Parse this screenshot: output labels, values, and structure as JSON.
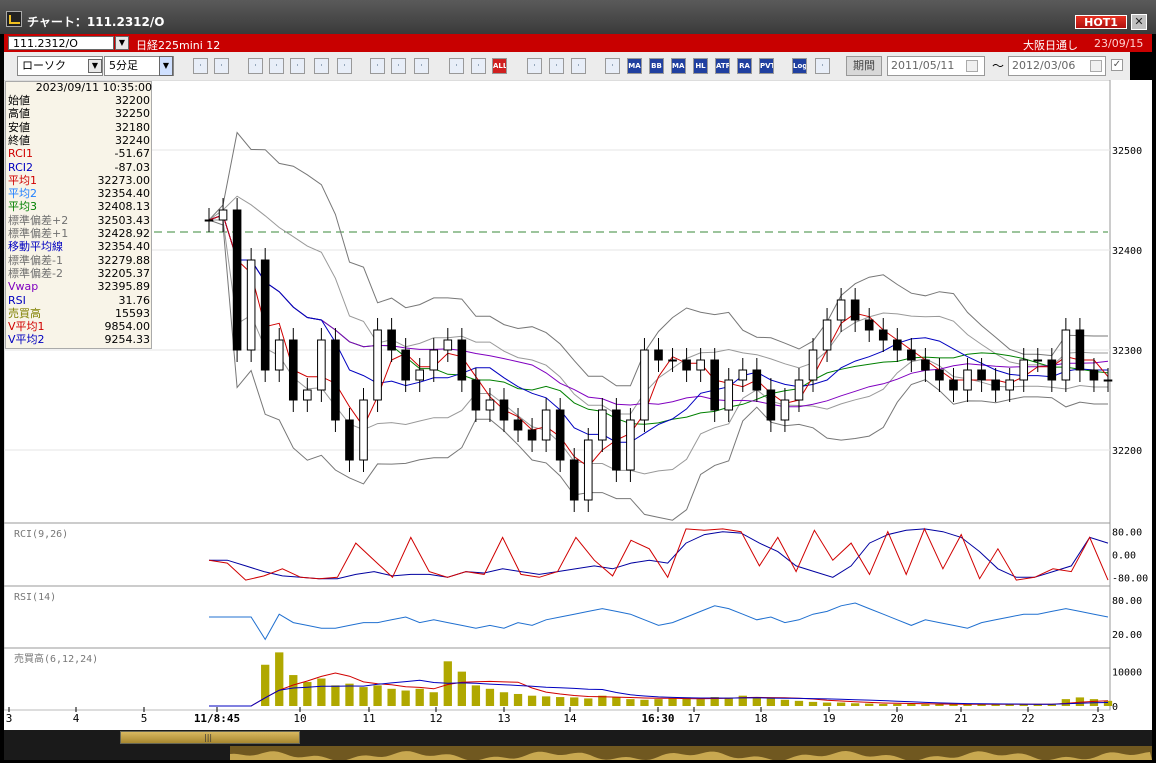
{
  "window": {
    "title": "チャート：111.2312/O",
    "hot_label": "HOT1",
    "close_glyph": "✕"
  },
  "symbolbar": {
    "symbol_code": "111.2312/O",
    "symbol_name": "日経225mini 12",
    "session": "大阪日通し",
    "date": "23/09/15"
  },
  "toolbar": {
    "chart_type": "ローソク",
    "interval": "5分足",
    "period_label": "期間",
    "date_from": "2011/05/11",
    "range_sep": "〜",
    "date_to": "2012/03/06",
    "buttons": [
      "zoom-icon",
      "crosshair-icon",
      "arrow-down-icon",
      "chart-search-icon",
      "list-icon",
      "scale-icon",
      "blank-icon",
      "pen-icon",
      "pointer-icon",
      "undo-icon",
      "bar-one-icon",
      "bar-two-icon",
      "all-icon",
      "gear-icon",
      "wrench-icon",
      "color-icon",
      "bb-icon",
      "ma-icon",
      "bb2-icon",
      "mae-icon",
      "hl-icon",
      "atr-icon",
      "ra-icon",
      "pvt-icon",
      "log-icon",
      "export-icon"
    ],
    "button_labels": {
      "all-icon": "ALL",
      "ma-icon": "MA",
      "bb2-icon": "BB",
      "mae-icon": "MAE",
      "hl-icon": "HL",
      "atr-icon": "ATR",
      "ra-icon": "RA",
      "pvt-icon": "PVT",
      "log-icon": "Log"
    }
  },
  "info_panel": {
    "timestamp": "2023/09/11  10:35:00",
    "rows": [
      {
        "label": "始値",
        "value": "32200",
        "color": "#000000"
      },
      {
        "label": "高値",
        "value": "32250",
        "color": "#000000"
      },
      {
        "label": "安値",
        "value": "32180",
        "color": "#000000"
      },
      {
        "label": "終値",
        "value": "32240",
        "color": "#000000"
      },
      {
        "label": "RCI1",
        "value": "-51.67",
        "color": "#d00000"
      },
      {
        "label": "RCI2",
        "value": "-87.03",
        "color": "#0000c0"
      },
      {
        "label": "平均1",
        "value": "32273.00",
        "color": "#d00000"
      },
      {
        "label": "平均2",
        "value": "32354.40",
        "color": "#2080ff"
      },
      {
        "label": "平均3",
        "value": "32408.13",
        "color": "#008000"
      },
      {
        "label": "標準偏差+2",
        "value": "32503.43",
        "color": "#707070"
      },
      {
        "label": "標準偏差+1",
        "value": "32428.92",
        "color": "#707070"
      },
      {
        "label": "移動平均線",
        "value": "32354.40",
        "color": "#0000c0"
      },
      {
        "label": "標準偏差-1",
        "value": "32279.88",
        "color": "#707070"
      },
      {
        "label": "標準偏差-2",
        "value": "32205.37",
        "color": "#707070"
      },
      {
        "label": "Vwap",
        "value": "32395.89",
        "color": "#8000c0"
      },
      {
        "label": "RSI",
        "value": "31.76",
        "color": "#0000c0"
      },
      {
        "label": "売買高",
        "value": "15593",
        "color": "#808000"
      },
      {
        "label": "V平均1",
        "value": "9854.00",
        "color": "#d00000"
      },
      {
        "label": "V平均2",
        "value": "9254.33",
        "color": "#0000c0"
      }
    ]
  },
  "chart_data": {
    "type": "line",
    "price_axis": {
      "ticks": [
        32500,
        32400,
        32300,
        32200
      ],
      "ylim": [
        32130,
        32560
      ]
    },
    "x_ticks": [
      "3",
      "4",
      "5",
      "11/8:45",
      "10",
      "11",
      "12",
      "13",
      "14",
      "16:30",
      "17",
      "18",
      "19",
      "20",
      "21",
      "22",
      "23"
    ],
    "price_series": [
      32430,
      32440,
      32300,
      32390,
      32280,
      32310,
      32250,
      32260,
      32310,
      32230,
      32190,
      32250,
      32320,
      32300,
      32270,
      32280,
      32300,
      32310,
      32270,
      32240,
      32250,
      32230,
      32220,
      32210,
      32240,
      32190,
      32150,
      32210,
      32240,
      32180,
      32230,
      32300,
      32290,
      32290,
      32280,
      32290,
      32240,
      32270,
      32280,
      32260,
      32230,
      32250,
      32270,
      32300,
      32330,
      32350,
      32330,
      32320,
      32310,
      32300,
      32290,
      32280,
      32270,
      32260,
      32280,
      32270,
      32260,
      32270,
      32290,
      32290,
      32270,
      32320,
      32280,
      32270,
      32270
    ],
    "rci": {
      "label": "RCI(9,26)",
      "ticks": [
        "80.00",
        "0.00",
        "-80.00"
      ],
      "ylim": [
        -100,
        100
      ],
      "rci1": [
        -20,
        -30,
        -90,
        -75,
        -50,
        -80,
        -85,
        -80,
        40,
        -20,
        -80,
        60,
        -60,
        -80,
        -60,
        -70,
        60,
        -70,
        -80,
        -60,
        60,
        -20,
        -75,
        50,
        20,
        -80,
        90,
        85,
        90,
        80,
        -40,
        60,
        -60,
        85,
        -20,
        40,
        -70,
        80,
        -70,
        90,
        -50,
        70,
        -85,
        20,
        -90,
        -80,
        -50,
        -60,
        60,
        -90
      ],
      "rci2": [
        -20,
        -20,
        -40,
        -60,
        -75,
        -80,
        -85,
        -85,
        -70,
        -60,
        -75,
        -70,
        -70,
        -80,
        -60,
        -65,
        -50,
        -60,
        -70,
        -60,
        -50,
        -40,
        -50,
        -30,
        -20,
        -30,
        40,
        70,
        80,
        75,
        40,
        10,
        -40,
        -60,
        -80,
        -40,
        40,
        70,
        85,
        90,
        80,
        60,
        10,
        -50,
        -80,
        -80,
        -60,
        -40,
        60,
        40
      ]
    },
    "rsi": {
      "label": "RSI(14)",
      "ticks": [
        "80.00",
        "20.00"
      ],
      "ylim": [
        0,
        100
      ],
      "values": [
        50,
        50,
        50,
        50,
        10,
        55,
        40,
        35,
        30,
        30,
        35,
        40,
        40,
        45,
        50,
        40,
        45,
        40,
        35,
        30,
        35,
        30,
        40,
        35,
        45,
        50,
        55,
        60,
        65,
        60,
        55,
        45,
        35,
        40,
        50,
        60,
        70,
        65,
        55,
        45,
        50,
        40,
        45,
        55,
        60,
        70,
        75,
        65,
        55,
        45,
        35,
        45,
        40,
        35,
        30,
        40,
        45,
        50,
        55,
        55,
        60,
        65,
        60,
        55,
        50
      ]
    },
    "volume": {
      "label": "売買高(6,12,24)",
      "ticks": [
        "10000",
        "0"
      ],
      "ylim": [
        0,
        16000
      ],
      "values": [
        0,
        0,
        0,
        0,
        12000,
        15600,
        9000,
        7000,
        8000,
        6000,
        6500,
        5500,
        6000,
        5000,
        4500,
        5000,
        4000,
        13000,
        10000,
        6000,
        5000,
        4000,
        3500,
        3000,
        2800,
        2600,
        2500,
        2200,
        3000,
        2500,
        2000,
        1800,
        2000,
        2200,
        2500,
        2000,
        2600,
        2400,
        3000,
        2500,
        2200,
        1800,
        1500,
        1200,
        1000,
        1000,
        800,
        700,
        600,
        600,
        600,
        500,
        500,
        500,
        500,
        500,
        500,
        600,
        500,
        500,
        500,
        2000,
        2500,
        2000,
        1500
      ]
    }
  }
}
